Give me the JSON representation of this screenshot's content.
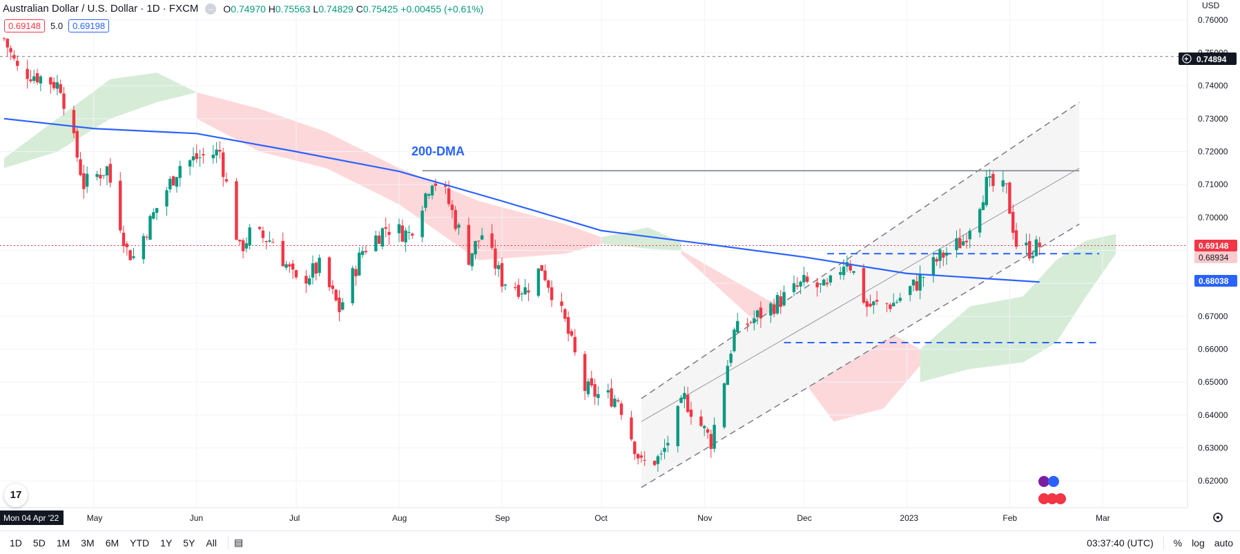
{
  "header": {
    "title": "Australian Dollar / U.S. Dollar · 1D · FXCM",
    "open_label": "O",
    "open": "0.74970",
    "high_label": "H",
    "high": "0.75563",
    "low_label": "L",
    "low": "0.74829",
    "close_label": "C",
    "close": "0.75425",
    "change": "+0.00455 (+0.61%)"
  },
  "indicators": {
    "value_a": "0.69148",
    "mid": "5.0",
    "value_b": "0.69198"
  },
  "currency": "USD",
  "annotation": "200-DMA",
  "crosshair_date": "Mon 04 Apr '22",
  "price_labels": {
    "crosshair": "0.74894",
    "last": "0.69148",
    "ichimoku": "0.68934",
    "ma200": "0.68038"
  },
  "bottom": {
    "ranges": [
      "1D",
      "5D",
      "1M",
      "3M",
      "6M",
      "YTD",
      "1Y",
      "5Y",
      "All"
    ],
    "time": "03:37:40 (UTC)",
    "percent": "%",
    "log": "log",
    "auto": "auto"
  },
  "colors": {
    "up": "#089981",
    "down": "#f23645",
    "ma": "#2962ff",
    "cloud_up": "#c8e6c9",
    "cloud_down": "#fccbcd"
  },
  "chart_data": {
    "type": "candlestick",
    "title": "Australian Dollar / U.S. Dollar · 1D · FXCM",
    "ylim": [
      0.615,
      0.765
    ],
    "y_ticks": [
      "0.62000",
      "0.63000",
      "0.64000",
      "0.65000",
      "0.66000",
      "0.67000",
      "0.68000",
      "0.69000",
      "0.70000",
      "0.71000",
      "0.72000",
      "0.73000",
      "0.74000",
      "0.75000",
      "0.76000"
    ],
    "x_ticks": [
      "May",
      "Jun",
      "Jul",
      "Aug",
      "Sep",
      "Oct",
      "Nov",
      "Dec",
      "2023",
      "Feb",
      "Mar"
    ],
    "close_path": [
      [
        "2022-04-04",
        0.7543
      ],
      [
        "2022-04-08",
        0.745
      ],
      [
        "2022-04-14",
        0.743
      ],
      [
        "2022-04-21",
        0.74
      ],
      [
        "2022-04-28",
        0.71
      ],
      [
        "2022-05-05",
        0.715
      ],
      [
        "2022-05-11",
        0.69
      ],
      [
        "2022-05-13",
        0.688
      ],
      [
        "2022-05-20",
        0.703
      ],
      [
        "2022-05-27",
        0.716
      ],
      [
        "2022-06-01",
        0.718
      ],
      [
        "2022-06-08",
        0.72
      ],
      [
        "2022-06-14",
        0.69
      ],
      [
        "2022-06-17",
        0.695
      ],
      [
        "2022-06-24",
        0.693
      ],
      [
        "2022-07-01",
        0.68
      ],
      [
        "2022-07-08",
        0.685
      ],
      [
        "2022-07-14",
        0.672
      ],
      [
        "2022-07-21",
        0.69
      ],
      [
        "2022-07-28",
        0.697
      ],
      [
        "2022-08-04",
        0.695
      ],
      [
        "2022-08-11",
        0.712
      ],
      [
        "2022-08-15",
        0.707
      ],
      [
        "2022-08-22",
        0.688
      ],
      [
        "2022-08-26",
        0.695
      ],
      [
        "2022-09-01",
        0.681
      ],
      [
        "2022-09-08",
        0.678
      ],
      [
        "2022-09-13",
        0.685
      ],
      [
        "2022-09-20",
        0.668
      ],
      [
        "2022-09-26",
        0.648
      ],
      [
        "2022-09-30",
        0.646
      ],
      [
        "2022-10-06",
        0.645
      ],
      [
        "2022-10-13",
        0.625
      ],
      [
        "2022-10-19",
        0.627
      ],
      [
        "2022-10-26",
        0.645
      ],
      [
        "2022-11-03",
        0.632
      ],
      [
        "2022-11-10",
        0.665
      ],
      [
        "2022-11-17",
        0.67
      ],
      [
        "2022-11-24",
        0.675
      ],
      [
        "2022-12-01",
        0.68
      ],
      [
        "2022-12-08",
        0.678
      ],
      [
        "2022-12-14",
        0.688
      ],
      [
        "2022-12-20",
        0.673
      ],
      [
        "2022-12-28",
        0.674
      ],
      [
        "2023-01-04",
        0.68
      ],
      [
        "2023-01-11",
        0.688
      ],
      [
        "2023-01-18",
        0.693
      ],
      [
        "2023-01-25",
        0.71
      ],
      [
        "2023-01-31",
        0.708
      ],
      [
        "2023-02-03",
        0.692
      ],
      [
        "2023-02-07",
        0.69
      ],
      [
        "2023-02-10",
        0.6915
      ]
    ],
    "ma200": [
      [
        "2022-04-04",
        0.73
      ],
      [
        "2022-05-01",
        0.727
      ],
      [
        "2022-06-01",
        0.7255
      ],
      [
        "2022-07-01",
        0.72
      ],
      [
        "2022-08-01",
        0.714
      ],
      [
        "2022-09-01",
        0.705
      ],
      [
        "2022-10-01",
        0.696
      ],
      [
        "2022-11-01",
        0.692
      ],
      [
        "2022-12-01",
        0.688
      ],
      [
        "2023-01-01",
        0.683
      ],
      [
        "2023-02-10",
        0.6804
      ]
    ],
    "horizontal_levels": [
      0.7489,
      0.7142,
      0.689,
      0.662
    ],
    "channel": {
      "x_range": [
        "2022-10-13",
        "2023-02-22"
      ],
      "upper": [
        0.645,
        0.735
      ],
      "middle": [
        0.638,
        0.715
      ],
      "lower": [
        0.618,
        0.698
      ]
    }
  }
}
